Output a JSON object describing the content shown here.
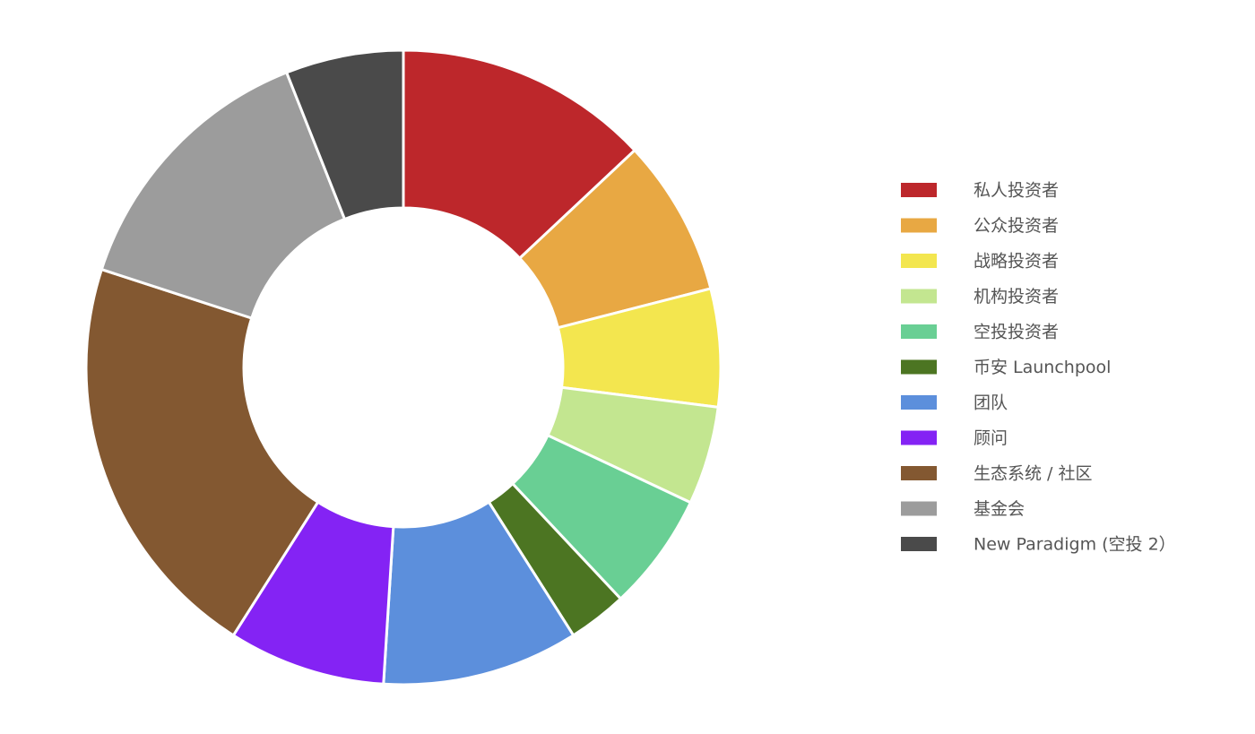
{
  "chart_data": {
    "type": "donut",
    "categories": [
      "私人投资者",
      "公众投资者",
      "战略投资者",
      "机构投资者",
      "空投投资者",
      "币安 Launchpool",
      "团队",
      "顾问",
      "生态系统 / 社区",
      "基金会",
      "New Paradigm (空投 2）"
    ],
    "values": [
      13,
      8,
      6,
      5,
      6,
      3,
      10,
      8,
      21,
      14,
      6
    ],
    "colors": [
      "#bd272b",
      "#e8a843",
      "#f3e64f",
      "#c3e690",
      "#69cf94",
      "#4c7522",
      "#5c8fdc",
      "#8423f4",
      "#835831",
      "#9c9c9c",
      "#4a4a4a"
    ],
    "legend": "right"
  }
}
